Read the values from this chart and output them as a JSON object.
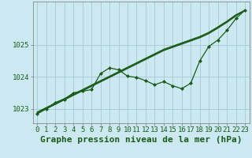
{
  "title": "Graphe pression niveau de la mer (hPa)",
  "bg_color": "#cce8f0",
  "grid_color": "#aaccd8",
  "line_color": "#1a5c1a",
  "x_values": [
    0,
    1,
    2,
    3,
    4,
    5,
    6,
    7,
    8,
    9,
    10,
    11,
    12,
    13,
    14,
    15,
    16,
    17,
    18,
    19,
    20,
    21,
    22,
    23
  ],
  "y_main": [
    1022.85,
    1023.0,
    1023.2,
    1023.3,
    1023.5,
    1023.55,
    1023.6,
    1024.1,
    1024.28,
    1024.22,
    1024.02,
    1023.98,
    1023.88,
    1023.75,
    1023.85,
    1023.72,
    1023.63,
    1023.8,
    1024.5,
    1024.95,
    1025.15,
    1025.45,
    1025.82,
    1026.08
  ],
  "y_lin1": [
    1022.85,
    1023.0,
    1023.14,
    1023.28,
    1023.42,
    1023.56,
    1023.7,
    1023.84,
    1023.98,
    1024.12,
    1024.26,
    1024.4,
    1024.54,
    1024.68,
    1024.82,
    1024.92,
    1025.02,
    1025.12,
    1025.22,
    1025.35,
    1025.52,
    1025.7,
    1025.9,
    1026.08
  ],
  "y_lin2": [
    1022.88,
    1023.02,
    1023.16,
    1023.3,
    1023.44,
    1023.58,
    1023.72,
    1023.86,
    1024.0,
    1024.14,
    1024.28,
    1024.42,
    1024.56,
    1024.7,
    1024.84,
    1024.94,
    1025.04,
    1025.14,
    1025.24,
    1025.37,
    1025.54,
    1025.72,
    1025.92,
    1026.08
  ],
  "y_lin3": [
    1022.9,
    1023.04,
    1023.18,
    1023.32,
    1023.46,
    1023.6,
    1023.74,
    1023.88,
    1024.02,
    1024.16,
    1024.3,
    1024.44,
    1024.58,
    1024.72,
    1024.86,
    1024.96,
    1025.06,
    1025.16,
    1025.26,
    1025.39,
    1025.56,
    1025.74,
    1025.94,
    1026.08
  ],
  "ylim": [
    1022.55,
    1026.35
  ],
  "yticks": [
    1023,
    1024,
    1025
  ],
  "xlim": [
    -0.5,
    23.5
  ],
  "title_fontsize": 8,
  "tick_fontsize": 6.5
}
